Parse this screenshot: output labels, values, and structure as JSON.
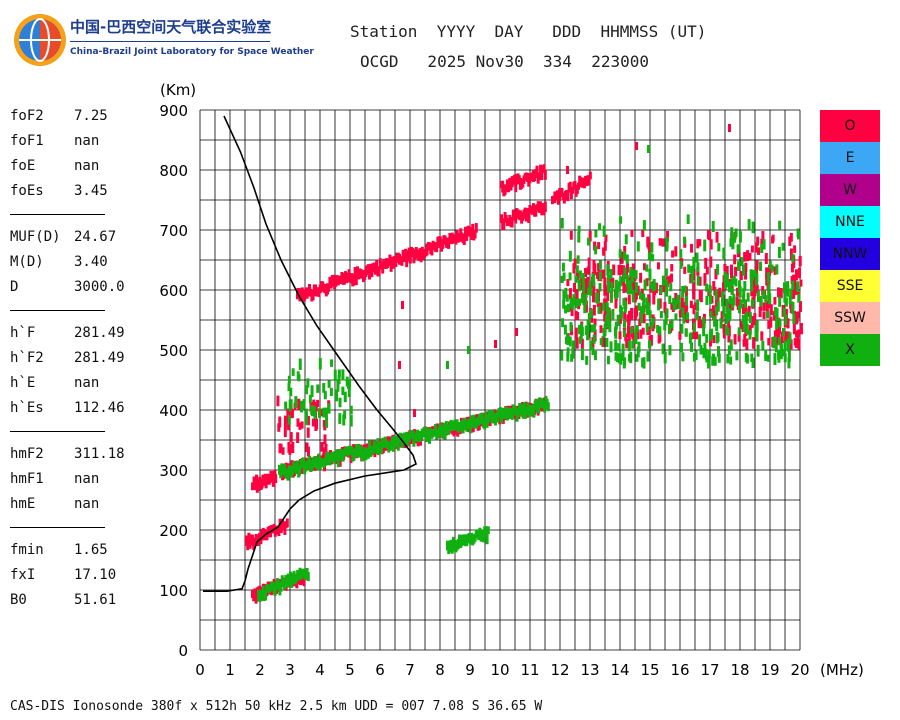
{
  "logo": {
    "name_zh": "中国-巴西空间天气联合实验室",
    "name_en": "China-Brazil Joint Laboratory for Space Weather"
  },
  "header": {
    "labels": "Station  YYYY  DAY   DDD  HHMMSS (UT)",
    "values": "OCGD   2025 Nov30  334  223000"
  },
  "params": {
    "group1": [
      {
        "label": "foF2",
        "value": "7.25"
      },
      {
        "label": "foF1",
        "value": "nan"
      },
      {
        "label": "foE",
        "value": "nan"
      },
      {
        "label": "foEs",
        "value": "3.45"
      }
    ],
    "group2": [
      {
        "label": "MUF(D)",
        "value": "24.67"
      },
      {
        "label": "M(D)",
        "value": "3.40"
      },
      {
        "label": "D",
        "value": "3000.0"
      }
    ],
    "group3": [
      {
        "label": "h`F",
        "value": "281.49"
      },
      {
        "label": "h`F2",
        "value": "281.49"
      },
      {
        "label": "h`E",
        "value": "nan"
      },
      {
        "label": "h`Es",
        "value": "112.46"
      }
    ],
    "group4": [
      {
        "label": "hmF2",
        "value": "311.18"
      },
      {
        "label": "hmF1",
        "value": "nan"
      },
      {
        "label": "hmE",
        "value": "nan"
      }
    ],
    "group5": [
      {
        "label": "fmin",
        "value": "1.65"
      },
      {
        "label": "fxI",
        "value": "17.10"
      },
      {
        "label": "B0",
        "value": "51.61"
      }
    ]
  },
  "legend": [
    {
      "name": "O",
      "color": "#ff0040"
    },
    {
      "name": "E",
      "color": "#3ca8f5"
    },
    {
      "name": "W",
      "color": "#b0008c"
    },
    {
      "name": "NNE",
      "color": "#00ffff"
    },
    {
      "name": "NNW",
      "color": "#2200e0"
    },
    {
      "name": "SSE",
      "color": "#ffff33"
    },
    {
      "name": "SSW",
      "color": "#ffb8aa"
    },
    {
      "name": "X",
      "color": "#10b010"
    }
  ],
  "footer": "CAS-DIS Ionosonde 380f x 512h 50 kHz 2.5 km UDD = 007 7.08 S 36.65 W",
  "chart_data": {
    "type": "scatter",
    "xlabel": "(MHz)",
    "ylabel": "(Km)",
    "xlim": [
      0,
      20
    ],
    "ylim": [
      0,
      900
    ],
    "xticks": [
      "0",
      "1",
      "2",
      "3",
      "4",
      "5",
      "6",
      "7",
      "8",
      "9",
      "10",
      "11",
      "12",
      "13",
      "14",
      "15",
      "16",
      "17",
      "18",
      "19",
      "20"
    ],
    "yticks": [
      "0",
      "100",
      "200",
      "300",
      "400",
      "500",
      "600",
      "700",
      "800",
      "900"
    ],
    "grid": true,
    "series": [
      {
        "name": "O",
        "color": "#ff0040",
        "traces": [
          {
            "x": [
              1.7,
              3.5
            ],
            "y": [
              92,
              125
            ]
          },
          {
            "x": [
              1.5,
              2.9
            ],
            "y": [
              180,
              212
            ]
          },
          {
            "x": [
              1.7,
              2.5
            ],
            "y": [
              278,
              288
            ]
          },
          {
            "x": [
              2.7,
              11.5
            ],
            "y": [
              300,
              410
            ]
          },
          {
            "x": [
              2.5,
              4.3
            ],
            "y": [
              330,
              420
            ]
          },
          {
            "x": [
              3.2,
              9.2
            ],
            "y": [
              590,
              700
            ]
          },
          {
            "x": [
              10.0,
              11.5
            ],
            "y": [
              715,
              740
            ]
          },
          {
            "x": [
              11.7,
              13.0
            ],
            "y": [
              750,
              790
            ]
          },
          {
            "x": [
              10.0,
              11.5
            ],
            "y": [
              770,
              800
            ]
          },
          {
            "x": [
              12.2,
              20.0
            ],
            "y": [
              510,
              700
            ]
          }
        ]
      },
      {
        "name": "X",
        "color": "#10b010",
        "traces": [
          {
            "x": [
              1.9,
              3.6
            ],
            "y": [
              95,
              130
            ]
          },
          {
            "x": [
              2.6,
              11.6
            ],
            "y": [
              298,
              412
            ]
          },
          {
            "x": [
              2.8,
              5.0
            ],
            "y": [
              380,
              480
            ]
          },
          {
            "x": [
              8.2,
              9.6
            ],
            "y": [
              175,
              195
            ]
          },
          {
            "x": [
              12.0,
              20.0
            ],
            "y": [
              480,
              720
            ]
          }
        ]
      }
    ],
    "profile": {
      "name": "electron density profile",
      "color": "#000000",
      "points": [
        [
          0.1,
          98
        ],
        [
          0.9,
          98
        ],
        [
          1.4,
          102
        ],
        [
          1.5,
          115
        ],
        [
          1.6,
          135
        ],
        [
          1.7,
          150
        ],
        [
          1.8,
          165
        ],
        [
          1.9,
          180
        ],
        [
          2.2,
          193
        ],
        [
          2.6,
          205
        ],
        [
          2.8,
          220
        ],
        [
          3.0,
          235
        ],
        [
          3.3,
          250
        ],
        [
          3.8,
          265
        ],
        [
          4.5,
          278
        ],
        [
          5.5,
          290
        ],
        [
          6.8,
          300
        ],
        [
          7.2,
          310
        ],
        [
          7.1,
          325
        ],
        [
          6.8,
          345
        ],
        [
          6.4,
          370
        ],
        [
          5.9,
          400
        ],
        [
          5.3,
          440
        ],
        [
          4.6,
          490
        ],
        [
          3.9,
          540
        ],
        [
          3.3,
          590
        ],
        [
          2.7,
          650
        ],
        [
          2.2,
          710
        ],
        [
          1.8,
          770
        ],
        [
          1.35,
          830
        ],
        [
          0.8,
          890
        ]
      ]
    }
  }
}
